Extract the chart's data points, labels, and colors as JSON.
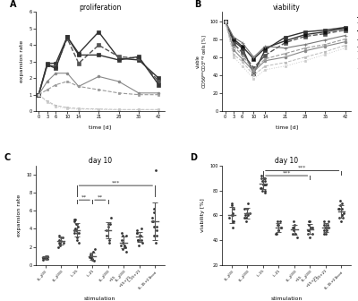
{
  "time_points": [
    0,
    3,
    6,
    10,
    14,
    21,
    28,
    35,
    42
  ],
  "prolif": {
    "IL-15-21_boost": [
      1.0,
      2.9,
      2.9,
      4.5,
      3.5,
      4.8,
      3.2,
      3.1,
      2.0
    ],
    "IL-15+21": [
      1.0,
      2.8,
      2.7,
      4.4,
      2.9,
      4.0,
      3.3,
      3.2,
      1.8
    ],
    "IL-2500+15+21": [
      1.0,
      2.8,
      2.6,
      4.5,
      3.4,
      3.4,
      3.1,
      3.3,
      1.6
    ],
    "IL-21": [
      1.0,
      1.8,
      2.3,
      2.3,
      1.5,
      2.1,
      1.8,
      1.1,
      1.1
    ],
    "IL-15": [
      1.0,
      1.3,
      1.6,
      1.8,
      1.5,
      1.3,
      1.1,
      1.0,
      1.0
    ],
    "IL-2500": [
      1.0,
      0.6,
      0.35,
      0.22,
      0.16,
      0.13,
      0.1,
      0.1,
      0.1
    ],
    "IL-2100": [
      1.0,
      0.55,
      0.28,
      0.15,
      0.12,
      0.1,
      0.08,
      0.08,
      0.08
    ]
  },
  "viability": {
    "IL-15-21_boost": [
      100,
      78,
      70,
      42,
      68,
      82,
      88,
      90,
      93
    ],
    "IL-15+21": [
      100,
      75,
      65,
      48,
      62,
      76,
      83,
      86,
      90
    ],
    "IL-2500+15+21": [
      100,
      80,
      72,
      58,
      70,
      78,
      85,
      88,
      92
    ],
    "IL-2500+15": [
      100,
      82,
      76,
      60,
      72,
      70,
      74,
      79,
      84
    ],
    "IL-21": [
      100,
      68,
      58,
      44,
      56,
      60,
      67,
      72,
      77
    ],
    "IL-15": [
      100,
      72,
      62,
      46,
      58,
      64,
      70,
      74,
      80
    ],
    "IL-2500": [
      100,
      63,
      55,
      40,
      50,
      54,
      60,
      66,
      73
    ],
    "IL-2100": [
      100,
      60,
      50,
      36,
      46,
      50,
      56,
      63,
      70
    ]
  },
  "scatter_C": {
    "IL-2100": [
      0.8,
      0.7,
      0.9,
      1.0,
      0.6,
      0.8,
      0.9,
      1.0,
      0.7,
      0.8
    ],
    "IL-2500": [
      2.0,
      2.5,
      3.0,
      2.5,
      2.8,
      3.2,
      2.2,
      2.7,
      3.0,
      2.4
    ],
    "IL-15": [
      3.0,
      3.5,
      4.0,
      4.5,
      3.8,
      4.2,
      5.0,
      3.5,
      2.8,
      3.8,
      4.5,
      4.8,
      5.0,
      3.5,
      2.5
    ],
    "IL-21": [
      0.5,
      0.8,
      1.0,
      1.5,
      0.7,
      1.2,
      0.6,
      0.9,
      1.8,
      0.8
    ],
    "IL-2500+15": [
      2.5,
      3.8,
      4.5,
      4.2,
      3.2,
      5.2,
      2.8,
      4.5
    ],
    "IL-2500+15+21": [
      1.5,
      2.2,
      3.2,
      2.8,
      3.5,
      2.2,
      1.8,
      3.2,
      2.5,
      2.0
    ],
    "IL-15+21": [
      2.2,
      2.8,
      3.2,
      3.5,
      2.8,
      3.5,
      2.5,
      3.2,
      2.8,
      3.8,
      4.0
    ],
    "IL-15-21_boost": [
      2.5,
      3.2,
      4.2,
      5.2,
      6.2,
      4.8,
      3.8,
      10.5,
      3.2,
      4.8,
      4.2,
      5.8
    ]
  },
  "scatter_D": {
    "IL-2100": [
      60,
      55,
      65,
      70,
      58,
      62,
      50,
      68,
      55,
      60
    ],
    "IL-2500": [
      60,
      62,
      65,
      60,
      58,
      70,
      55,
      65,
      62,
      58
    ],
    "IL-15": [
      80,
      85,
      90,
      82,
      88,
      92,
      85,
      78,
      90,
      85,
      88,
      82,
      80,
      85,
      90
    ],
    "IL-21": [
      50,
      55,
      45,
      52,
      48,
      55,
      50,
      45,
      52,
      48
    ],
    "IL-2500+15": [
      45,
      50,
      55,
      42,
      48,
      52,
      45,
      50
    ],
    "IL-2500+15+21": [
      45,
      50,
      55,
      42,
      48,
      52,
      45,
      50,
      55,
      48
    ],
    "IL-15+21": [
      50,
      55,
      48,
      52,
      45,
      50,
      55,
      48,
      52,
      45,
      50
    ],
    "IL-15-21_boost": [
      55,
      60,
      65,
      70,
      58,
      62,
      68,
      72,
      65,
      60,
      58,
      65
    ]
  },
  "bg_color": "#ffffff"
}
